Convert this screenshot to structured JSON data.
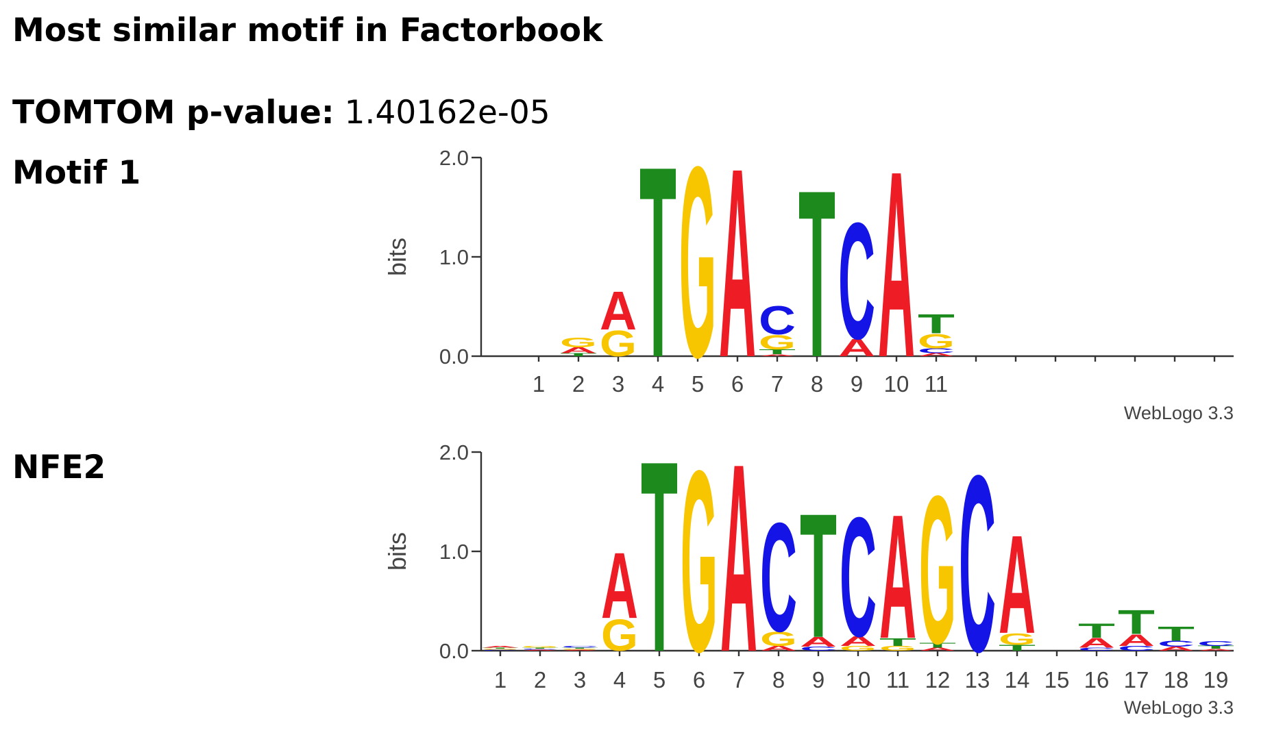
{
  "header": {
    "title": "Most similar motif in Factorbook",
    "pvalue_label": "TOMTOM p-value:",
    "pvalue": "1.40162e-05"
  },
  "chart_data": [
    {
      "type": "logo",
      "label": "Motif 1",
      "ylabel": "bits",
      "footer": "WebLogo 3.3",
      "categories": [
        "1",
        "2",
        "3",
        "4",
        "5",
        "6",
        "7",
        "8",
        "9",
        "10",
        "11",
        null,
        null,
        null,
        null,
        null,
        null,
        null
      ],
      "series": [
        {
          "name": "A",
          "color": "#ee1c24",
          "values": [
            0,
            0.06,
            0.4,
            0,
            0,
            1.98,
            0.02,
            0,
            0.18,
            1.95,
            0.03,
            0,
            0,
            0,
            0,
            0,
            0,
            0
          ]
        },
        {
          "name": "C",
          "color": "#1414e6",
          "values": [
            0,
            0,
            0,
            0,
            0,
            0,
            0.3,
            0,
            1.22,
            0,
            0.05,
            0,
            0,
            0,
            0,
            0,
            0,
            0
          ]
        },
        {
          "name": "G",
          "color": "#f7c600",
          "values": [
            0,
            0.1,
            0.27,
            0,
            2.0,
            0,
            0.15,
            0,
            0,
            0,
            0.15,
            0,
            0,
            0,
            0,
            0,
            0,
            0
          ]
        },
        {
          "name": "T",
          "color": "#1c8a1c",
          "values": [
            0,
            0.03,
            0,
            2.0,
            0,
            0,
            0.05,
            1.75,
            0,
            0,
            0.2,
            0,
            0,
            0,
            0,
            0,
            0,
            0
          ]
        }
      ],
      "ylim": [
        0,
        2
      ],
      "yticks": [
        {
          "value": 0,
          "label": "0.0"
        },
        {
          "value": 1,
          "label": "1.0"
        },
        {
          "value": 2,
          "label": "2.0"
        }
      ]
    },
    {
      "type": "logo",
      "label": "NFE2",
      "ylabel": "bits",
      "footer": "WebLogo 3.3",
      "categories": [
        "1",
        "2",
        "3",
        "4",
        "5",
        "6",
        "7",
        "8",
        "9",
        "10",
        "11",
        "12",
        "13",
        "14",
        "15",
        "16",
        "17",
        "18",
        "19"
      ],
      "series": [
        {
          "name": "A",
          "color": "#ee1c24",
          "values": [
            0.02,
            0.01,
            0.01,
            0.69,
            0,
            0,
            1.97,
            0.05,
            0.1,
            0.1,
            1.3,
            0.03,
            0,
            1.03,
            0,
            0.1,
            0.12,
            0.04,
            0.02
          ]
        },
        {
          "name": "C",
          "color": "#1414e6",
          "values": [
            0.01,
            0.01,
            0.02,
            0,
            0,
            0,
            0,
            1.14,
            0.04,
            1.25,
            0,
            0,
            1.85,
            0,
            0,
            0.03,
            0.05,
            0.06,
            0.05
          ]
        },
        {
          "name": "G",
          "color": "#f7c600",
          "values": [
            0.01,
            0.02,
            0.01,
            0.33,
            0,
            1.9,
            0,
            0.15,
            0,
            0.05,
            0.05,
            1.55,
            0,
            0.12,
            0,
            0,
            0,
            0,
            0
          ]
        },
        {
          "name": "T",
          "color": "#1c8a1c",
          "values": [
            0.01,
            0.01,
            0.01,
            0,
            2.0,
            0,
            0,
            0,
            1.3,
            0,
            0.08,
            0.05,
            0,
            0.06,
            0,
            0.15,
            0.25,
            0.15,
            0.03
          ]
        }
      ],
      "ylim": [
        0,
        2
      ],
      "yticks": [
        {
          "value": 0,
          "label": "0.0"
        },
        {
          "value": 1,
          "label": "1.0"
        },
        {
          "value": 2,
          "label": "2.0"
        }
      ]
    }
  ]
}
